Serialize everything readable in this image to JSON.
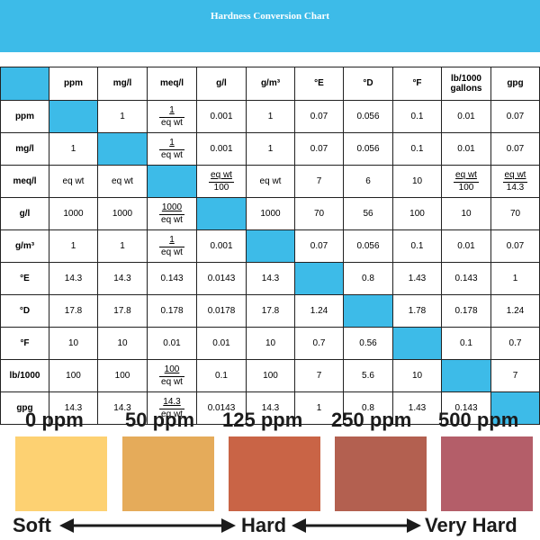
{
  "title": "Hardness Conversion Chart",
  "header": [
    "",
    "ppm",
    "mg/l",
    "meq/l",
    "g/l",
    "g/m³",
    "°E",
    "°D",
    "°F",
    "lb/1000 gallons",
    "gpg"
  ],
  "rows": [
    {
      "label": "ppm",
      "cells": [
        "",
        "1",
        {
          "n": "1",
          "d": "eq wt"
        },
        "0.001",
        "1",
        "0.07",
        "0.056",
        "0.1",
        "0.01",
        "0.07"
      ]
    },
    {
      "label": "mg/l",
      "cells": [
        "1",
        "",
        {
          "n": "1",
          "d": "eq wt"
        },
        "0.001",
        "1",
        "0.07",
        "0.056",
        "0.1",
        "0.01",
        "0.07"
      ]
    },
    {
      "label": "meq/l",
      "cells": [
        "eq wt",
        "eq wt",
        "",
        {
          "n": "eq wt",
          "d": "100"
        },
        "eq wt",
        "7",
        "6",
        "10",
        {
          "n": "eq wt",
          "d": "100"
        },
        {
          "n": "eq wt",
          "d": "14.3"
        }
      ]
    },
    {
      "label": "g/l",
      "cells": [
        "1000",
        "1000",
        {
          "n": "1000",
          "d": "eq wt"
        },
        "",
        "1000",
        "70",
        "56",
        "100",
        "10",
        "70"
      ]
    },
    {
      "label": "g/m³",
      "cells": [
        "1",
        "1",
        {
          "n": "1",
          "d": "eq wt"
        },
        "0.001",
        "",
        "0.07",
        "0.056",
        "0.1",
        "0.01",
        "0.07"
      ]
    },
    {
      "label": "°E",
      "cells": [
        "14.3",
        "14.3",
        "0.143",
        "0.0143",
        "14.3",
        "",
        "0.8",
        "1.43",
        "0.143",
        "1"
      ]
    },
    {
      "label": "°D",
      "cells": [
        "17.8",
        "17.8",
        "0.178",
        "0.0178",
        "17.8",
        "1.24",
        "",
        "1.78",
        "0.178",
        "1.24"
      ]
    },
    {
      "label": "°F",
      "cells": [
        "10",
        "10",
        "0.01",
        "0.01",
        "10",
        "0.7",
        "0.56",
        "",
        "0.1",
        "0.7"
      ]
    },
    {
      "label": "lb/1000",
      "cells": [
        "100",
        "100",
        {
          "n": "100",
          "d": "eq wt"
        },
        "0.1",
        "100",
        "7",
        "5.6",
        "10",
        "",
        "7"
      ]
    },
    {
      "label": "gpg",
      "cells": [
        "14.3",
        "14.3",
        {
          "n": "14.3",
          "d": "eq wt"
        },
        "0.0143",
        "14.3",
        "1",
        "0.8",
        "1.43",
        "0.143",
        ""
      ]
    }
  ],
  "scale": {
    "ppm": [
      "0 ppm",
      "50 ppm",
      "125 ppm",
      "250 ppm",
      "500 ppm"
    ],
    "colors": [
      "#fdd172",
      "#e5ab5a",
      "#c96446",
      "#b36050",
      "#b45e69"
    ],
    "labels": {
      "soft": "Soft",
      "hard": "Hard",
      "very_hard": "Very Hard"
    }
  },
  "colors": {
    "accent": "#3dbbe8"
  }
}
